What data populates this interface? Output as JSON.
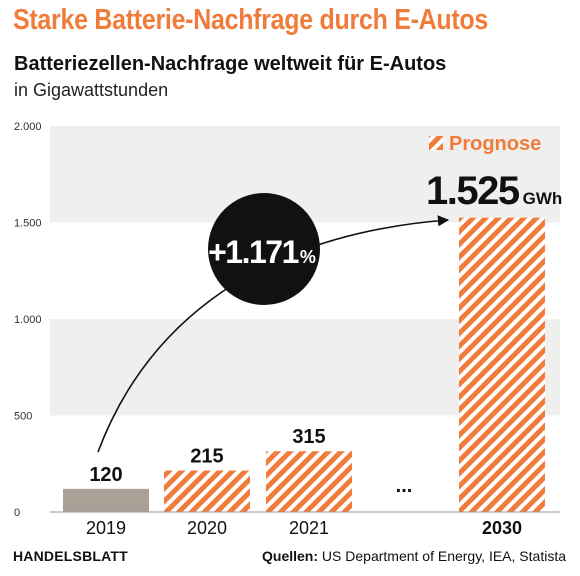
{
  "headline": "Starke Batterie-Nachfrage durch E-Autos",
  "subtitle": "Batteriezellen-Nachfrage weltweit für E-Autos",
  "unit_label": "in Gigawattstunden",
  "legend": {
    "label": "Prognose"
  },
  "growth_badge": {
    "value": "+1.171",
    "unit": "%"
  },
  "highlight": {
    "value": "1.525",
    "unit": "GWh"
  },
  "gap_marker": "...",
  "footer": {
    "brand": "HANDELSBLATT",
    "sources_label": "Quellen:",
    "sources": "US Department of Energy, IEA, Statista"
  },
  "colors": {
    "accent": "#f07c3c",
    "historic_bar": "#aaa095",
    "band": "#efefed",
    "text": "#111111"
  },
  "chart_data": {
    "type": "bar",
    "title": "Batteriezellen-Nachfrage weltweit für E-Autos",
    "ylabel": "in Gigawattstunden",
    "categories": [
      "2019",
      "2020",
      "2021",
      "2030"
    ],
    "values": [
      120,
      215,
      315,
      1525
    ],
    "value_labels": [
      "120",
      "215",
      "315",
      "1.525"
    ],
    "forecast": [
      false,
      true,
      true,
      true
    ],
    "ylim": [
      0,
      2000
    ],
    "yticks": [
      0,
      500,
      1000,
      1500,
      2000
    ],
    "ytick_labels": [
      "0",
      "500",
      "1.000",
      "1.500",
      "2.000"
    ],
    "grid": "alternating horizontal bands",
    "legend_position": "top-right"
  }
}
